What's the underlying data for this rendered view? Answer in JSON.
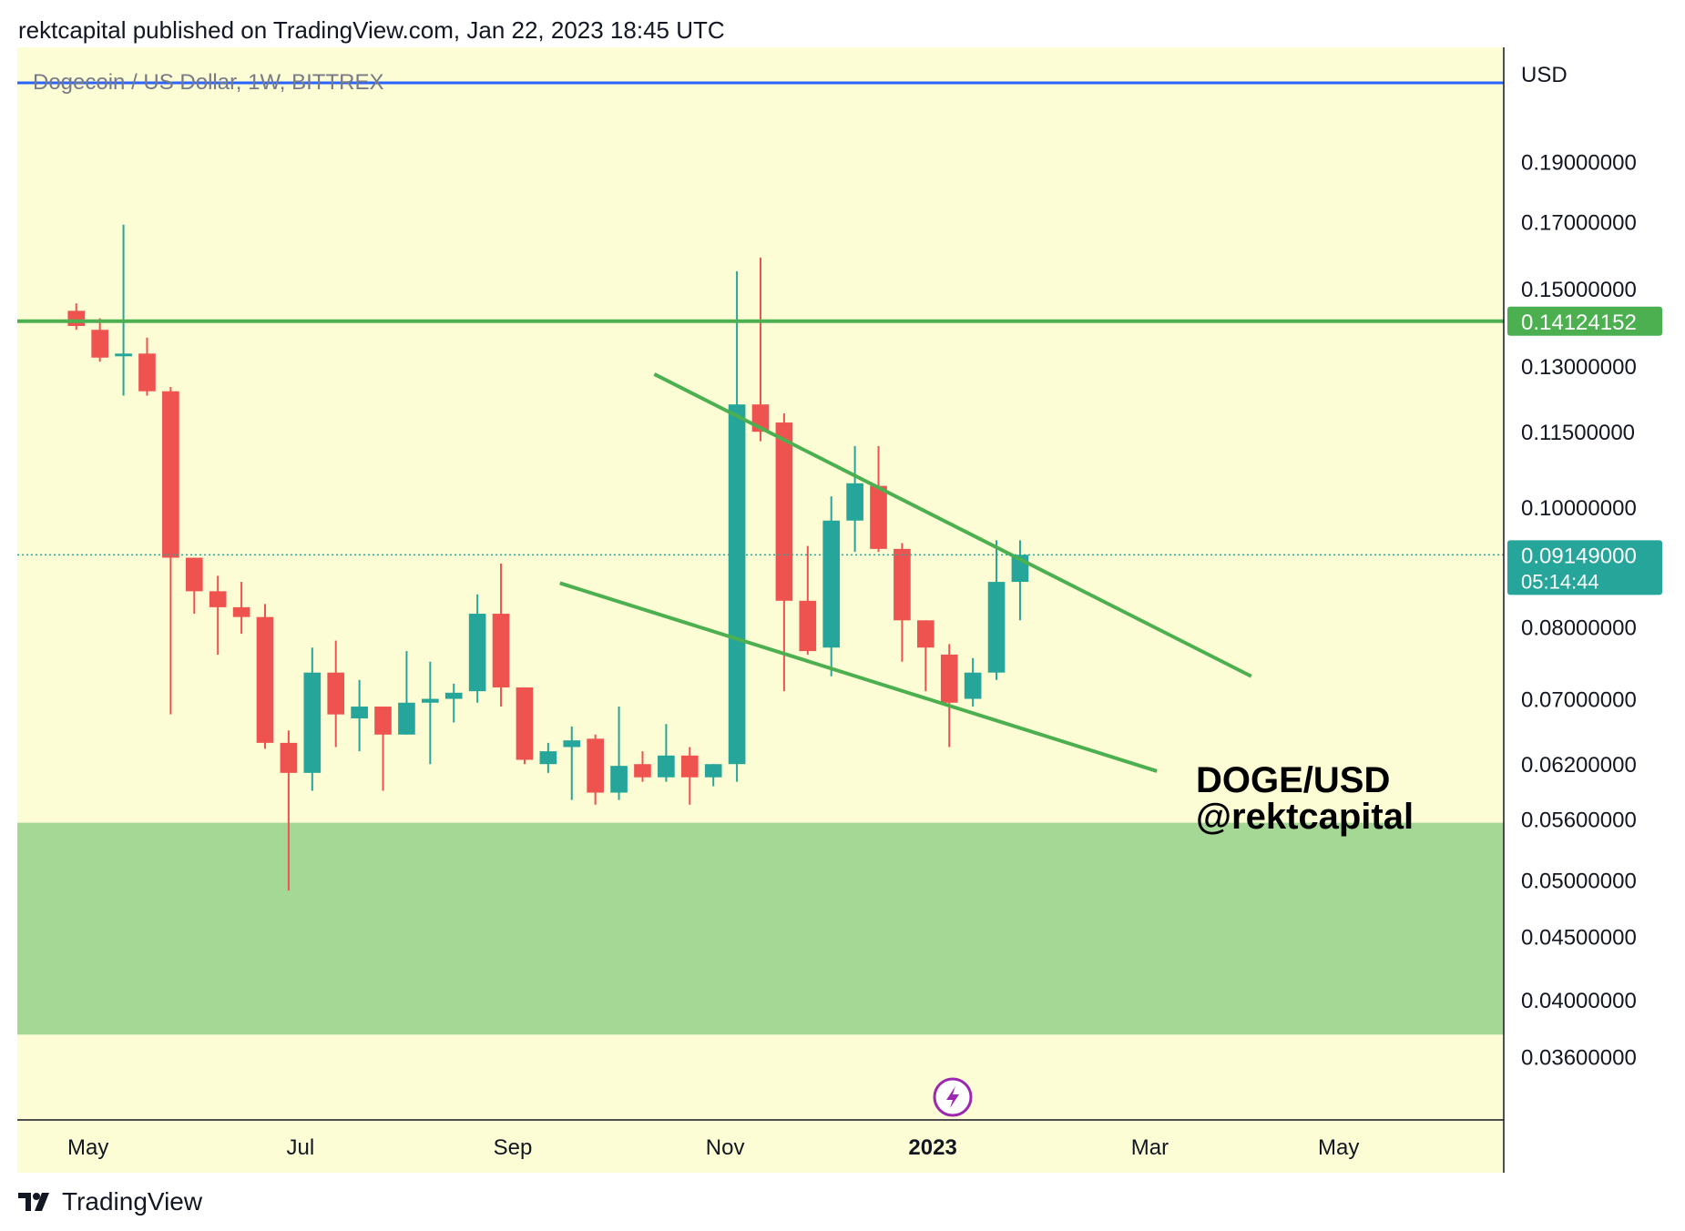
{
  "header": {
    "published": "rektcapital published on TradingView.com, Jan 22, 2023 18:45 UTC"
  },
  "footer": {
    "brand": "TradingView",
    "logo_icon": "tradingview-logo-icon"
  },
  "colors": {
    "background": "#fdfdd5",
    "zone": "#a6d895",
    "up": "#26a69a",
    "down": "#ef5350",
    "line": "#4caf50",
    "blue": "#2962ff",
    "text": "#131722",
    "axis_text": "#787b86",
    "purple": "#9c27b0"
  },
  "chart_data": {
    "type": "candlestick",
    "symbol_label": "Dogecoin / US Dollar, 1W, BITTREX",
    "currency": "USD",
    "y_scale": "log",
    "ylim": [
      0.032,
      0.235
    ],
    "y_ticks": [
      "0.19000000",
      "0.17000000",
      "0.15000000",
      "0.13000000",
      "0.11500000",
      "0.10000000",
      "0.08000000",
      "0.07000000",
      "0.06200000",
      "0.05600000",
      "0.05000000",
      "0.04500000",
      "0.04000000",
      "0.03600000"
    ],
    "x_ticks": [
      "May",
      "Jul",
      "Sep",
      "Nov",
      "2023",
      "Mar",
      "May"
    ],
    "x_tick_positions": [
      0.5,
      9.5,
      18.5,
      27.5,
      36.3,
      45.5,
      53.5
    ],
    "x_range": [
      -2.5,
      60.5
    ],
    "candles": [
      {
        "o": 0.144,
        "h": 0.146,
        "l": 0.139,
        "c": 0.14
      },
      {
        "o": 0.139,
        "h": 0.142,
        "l": 0.131,
        "c": 0.132
      },
      {
        "o": 0.133,
        "h": 0.169,
        "l": 0.123,
        "c": 0.133
      },
      {
        "o": 0.133,
        "h": 0.137,
        "l": 0.123,
        "c": 0.124
      },
      {
        "o": 0.124,
        "h": 0.125,
        "l": 0.068,
        "c": 0.091
      },
      {
        "o": 0.091,
        "h": 0.091,
        "l": 0.082,
        "c": 0.0855
      },
      {
        "o": 0.0855,
        "h": 0.088,
        "l": 0.076,
        "c": 0.083
      },
      {
        "o": 0.083,
        "h": 0.087,
        "l": 0.079,
        "c": 0.0815
      },
      {
        "o": 0.0815,
        "h": 0.0835,
        "l": 0.0638,
        "c": 0.0645
      },
      {
        "o": 0.0645,
        "h": 0.066,
        "l": 0.049,
        "c": 0.061
      },
      {
        "o": 0.061,
        "h": 0.077,
        "l": 0.059,
        "c": 0.0735
      },
      {
        "o": 0.0735,
        "h": 0.078,
        "l": 0.064,
        "c": 0.068
      },
      {
        "o": 0.0675,
        "h": 0.0725,
        "l": 0.0635,
        "c": 0.069
      },
      {
        "o": 0.069,
        "h": 0.069,
        "l": 0.059,
        "c": 0.0655
      },
      {
        "o": 0.0655,
        "h": 0.0765,
        "l": 0.0655,
        "c": 0.0695
      },
      {
        "o": 0.0695,
        "h": 0.075,
        "l": 0.062,
        "c": 0.07
      },
      {
        "o": 0.07,
        "h": 0.072,
        "l": 0.067,
        "c": 0.0708
      },
      {
        "o": 0.071,
        "h": 0.085,
        "l": 0.0695,
        "c": 0.082
      },
      {
        "o": 0.082,
        "h": 0.09,
        "l": 0.069,
        "c": 0.0715
      },
      {
        "o": 0.0715,
        "h": 0.0715,
        "l": 0.062,
        "c": 0.0625
      },
      {
        "o": 0.062,
        "h": 0.0645,
        "l": 0.061,
        "c": 0.0635
      },
      {
        "o": 0.064,
        "h": 0.0665,
        "l": 0.058,
        "c": 0.0648
      },
      {
        "o": 0.065,
        "h": 0.0655,
        "l": 0.0575,
        "c": 0.0588
      },
      {
        "o": 0.0588,
        "h": 0.069,
        "l": 0.058,
        "c": 0.0618
      },
      {
        "o": 0.062,
        "h": 0.0635,
        "l": 0.06,
        "c": 0.0605
      },
      {
        "o": 0.0605,
        "h": 0.0668,
        "l": 0.06,
        "c": 0.063
      },
      {
        "o": 0.063,
        "h": 0.064,
        "l": 0.0575,
        "c": 0.0605
      },
      {
        "o": 0.0605,
        "h": 0.062,
        "l": 0.0595,
        "c": 0.062
      },
      {
        "o": 0.062,
        "h": 0.155,
        "l": 0.06,
        "c": 0.121
      },
      {
        "o": 0.121,
        "h": 0.159,
        "l": 0.113,
        "c": 0.115
      },
      {
        "o": 0.117,
        "h": 0.119,
        "l": 0.071,
        "c": 0.084
      },
      {
        "o": 0.084,
        "h": 0.093,
        "l": 0.076,
        "c": 0.0765
      },
      {
        "o": 0.077,
        "h": 0.102,
        "l": 0.073,
        "c": 0.0975
      },
      {
        "o": 0.0975,
        "h": 0.112,
        "l": 0.092,
        "c": 0.1045
      },
      {
        "o": 0.104,
        "h": 0.112,
        "l": 0.092,
        "c": 0.0925
      },
      {
        "o": 0.0925,
        "h": 0.0935,
        "l": 0.075,
        "c": 0.081
      },
      {
        "o": 0.081,
        "h": 0.081,
        "l": 0.071,
        "c": 0.077
      },
      {
        "o": 0.076,
        "h": 0.0775,
        "l": 0.064,
        "c": 0.0695
      },
      {
        "o": 0.07,
        "h": 0.0755,
        "l": 0.069,
        "c": 0.0735
      },
      {
        "o": 0.0735,
        "h": 0.094,
        "l": 0.0725,
        "c": 0.087
      },
      {
        "o": 0.087,
        "h": 0.094,
        "l": 0.081,
        "c": 0.0915
      }
    ],
    "trendlines": [
      {
        "name": "upper-trendline",
        "points": [
          [
            24.5,
            0.128
          ],
          [
            49.8,
            0.073
          ]
        ]
      },
      {
        "name": "lower-trendline",
        "points": [
          [
            20.5,
            0.0868
          ],
          [
            45.8,
            0.0612
          ]
        ]
      }
    ],
    "horizontal_levels": [
      {
        "name": "resistance-level",
        "value": 0.14124152,
        "label": "0.14124152"
      },
      {
        "name": "top-blue-line",
        "value": 0.22
      }
    ],
    "support_zone": {
      "low": 0.0375,
      "high": 0.0556
    },
    "last_price": {
      "value": 0.09149,
      "label": "0.09149000",
      "countdown": "05:14:44"
    },
    "annotations": [
      "DOGE/USD",
      "@rektcapital"
    ]
  }
}
